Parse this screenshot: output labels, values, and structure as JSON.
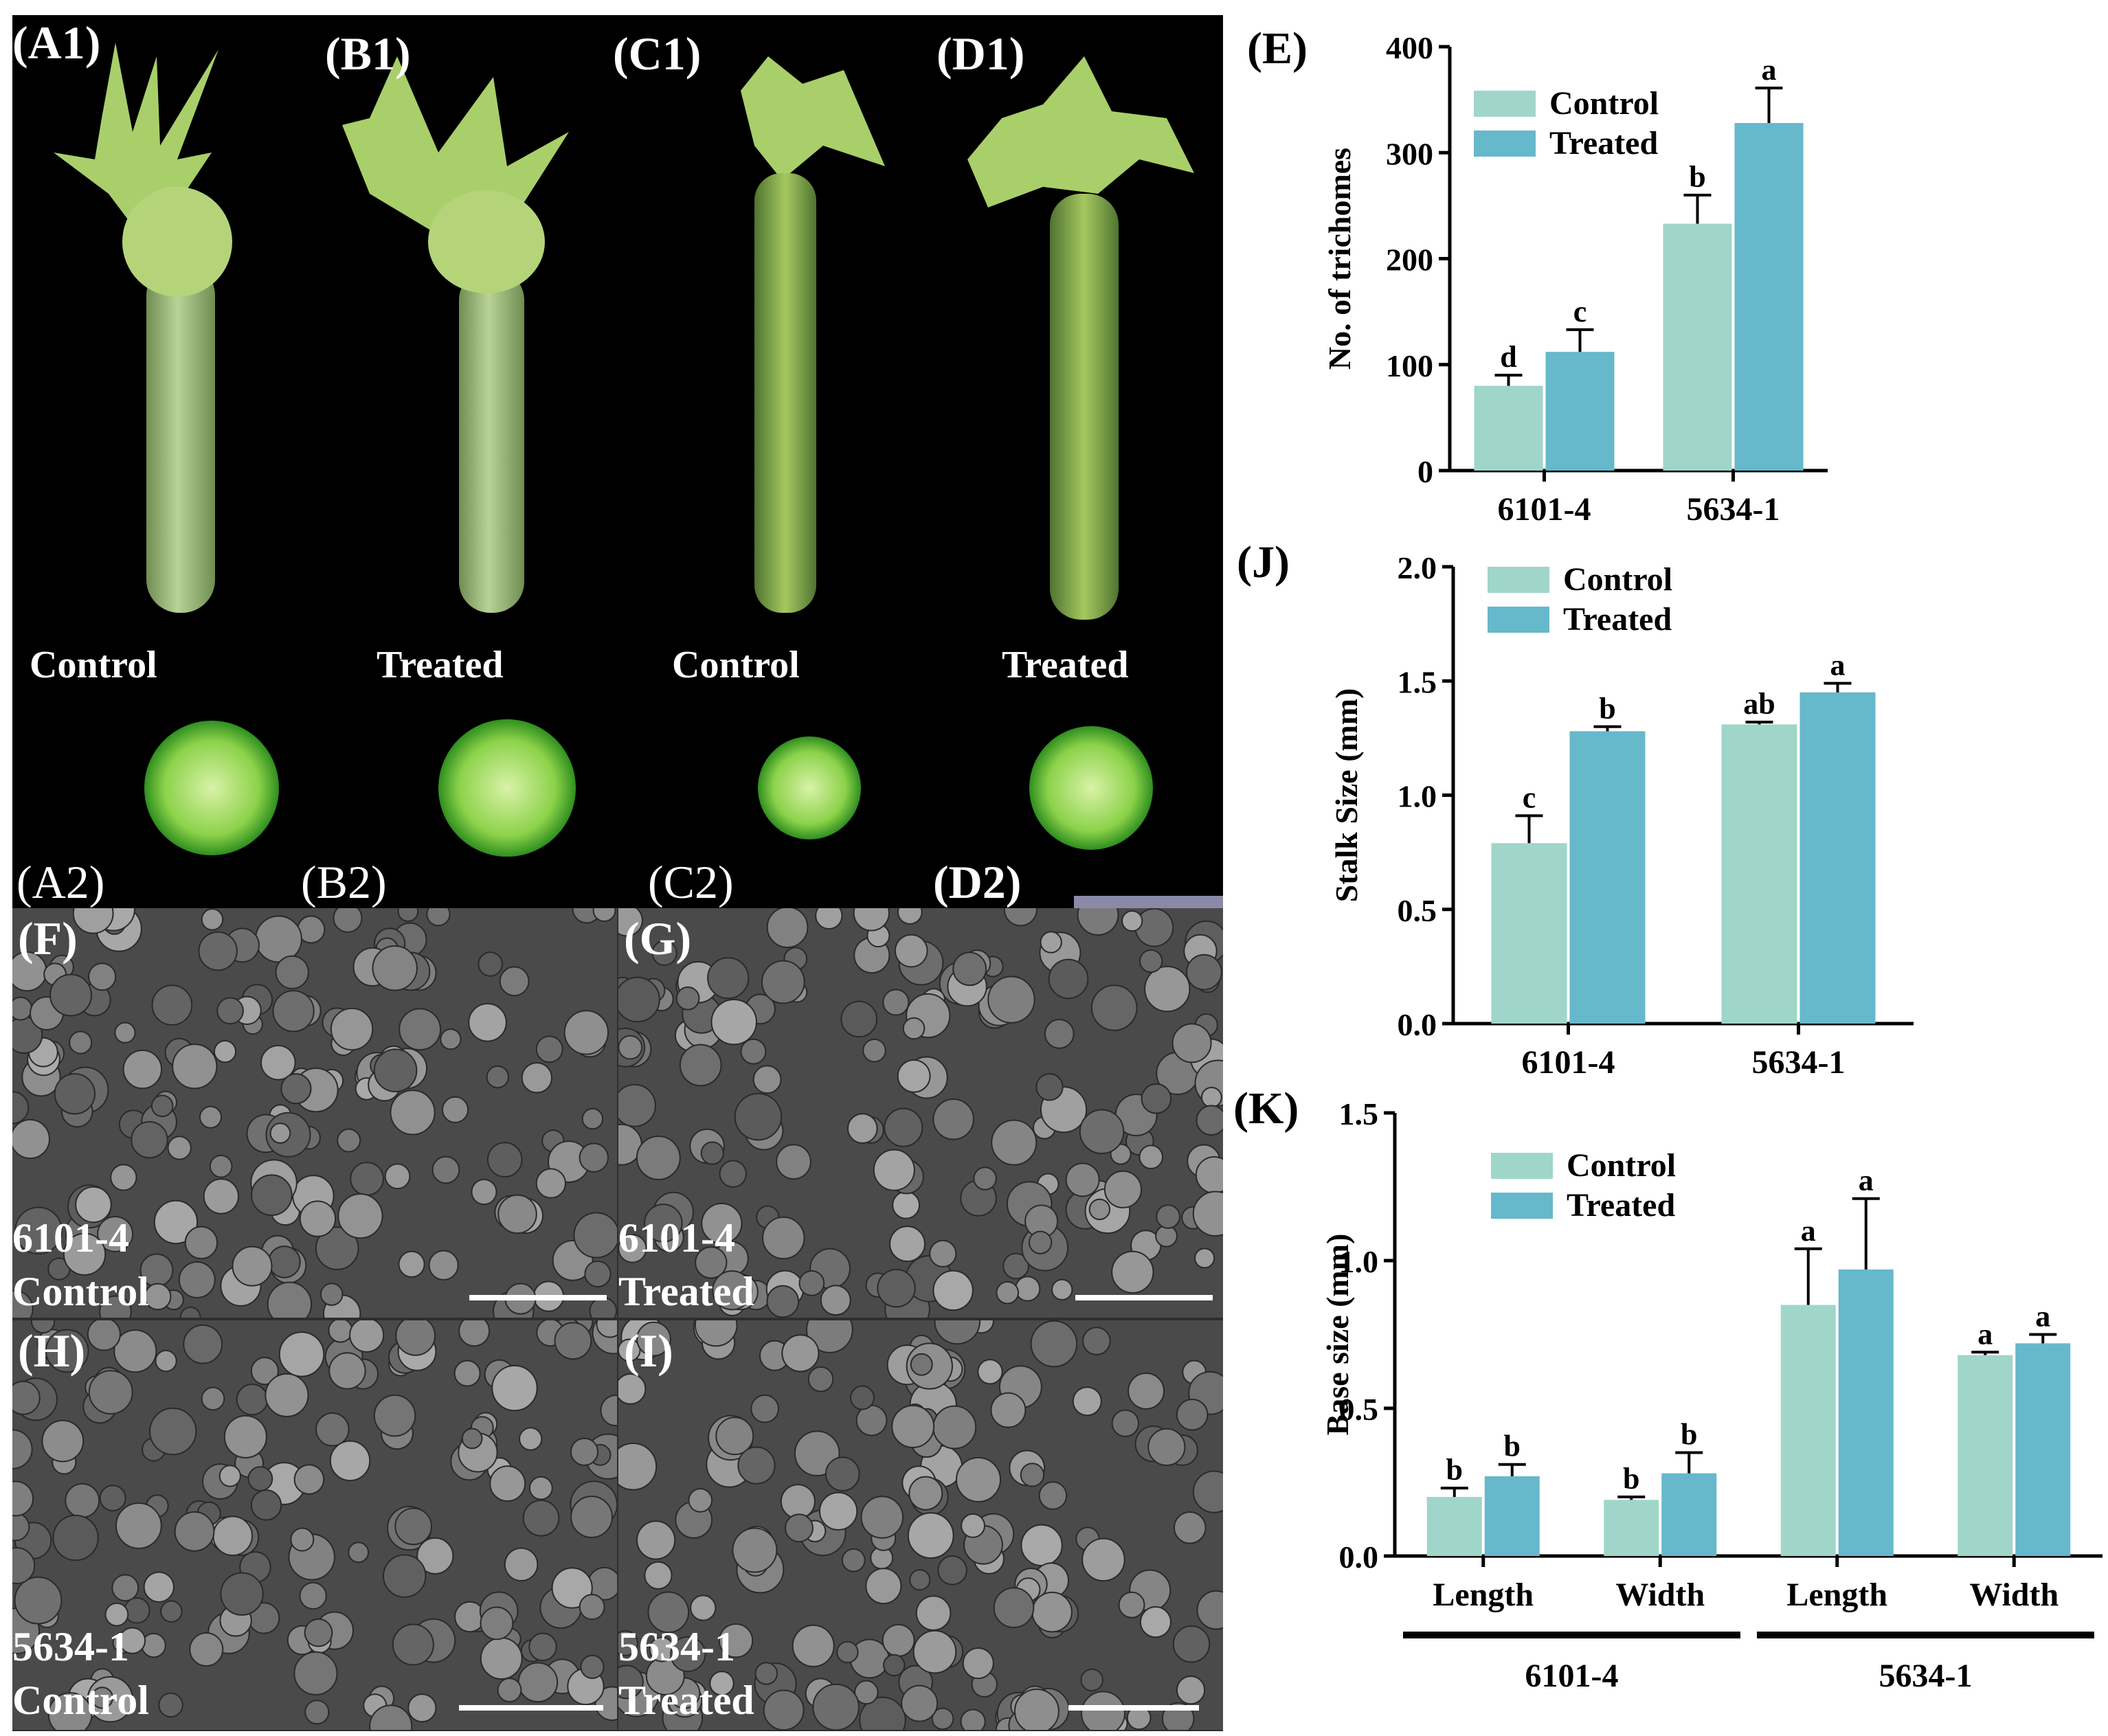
{
  "colors": {
    "control": "#9fd6c9",
    "treated": "#66b8cb",
    "photo_bg": "#000000",
    "fruit": "#9fc46e",
    "sem_bg": "#3a3a3a"
  },
  "photos": {
    "top_labels": [
      "(A1)",
      "(B1)",
      "(C1)",
      "(D1)"
    ],
    "bottom_labels": [
      "(A2)",
      "(B2)",
      "(C2)",
      "(D2)"
    ],
    "condition_labels": [
      "Control",
      "Treated",
      "Control",
      "Treated"
    ]
  },
  "sem": {
    "cells": [
      {
        "label": "(F)",
        "line": "6101-4",
        "condition": "Control"
      },
      {
        "label": "(G)",
        "line": "6101-4",
        "condition": "Treated"
      },
      {
        "label": "(H)",
        "line": "5634-1",
        "condition": "Control"
      },
      {
        "label": "(I)",
        "line": "5634-1",
        "condition": "Treated"
      }
    ]
  },
  "chart_data": [
    {
      "panel": "(E)",
      "type": "bar",
      "ylabel": "No. of trichomes",
      "xlabel": "",
      "categories": [
        "6101-4",
        "5634-1"
      ],
      "ylim": [
        0,
        400
      ],
      "yticks": [
        "0",
        "100",
        "200",
        "300",
        "400"
      ],
      "legend": "top-left",
      "series": [
        {
          "name": "Control",
          "values": [
            80,
            233
          ],
          "errors": [
            10,
            27
          ],
          "letters": [
            "d",
            "b"
          ]
        },
        {
          "name": "Treated",
          "values": [
            112,
            328
          ],
          "errors": [
            21,
            33
          ],
          "letters": [
            "c",
            "a"
          ]
        }
      ]
    },
    {
      "panel": "(J)",
      "type": "bar",
      "ylabel": "Stalk Size (mm)",
      "xlabel": "",
      "categories": [
        "6101-4",
        "5634-1"
      ],
      "ylim": [
        0,
        2.0
      ],
      "yticks": [
        "0.0",
        "0.5",
        "1.0",
        "1.5",
        "2.0"
      ],
      "legend": "top-left",
      "series": [
        {
          "name": "Control",
          "values": [
            0.79,
            1.31
          ],
          "errors": [
            0.12,
            0.01
          ],
          "letters": [
            "c",
            "ab"
          ]
        },
        {
          "name": "Treated",
          "values": [
            1.28,
            1.45
          ],
          "errors": [
            0.02,
            0.04
          ],
          "letters": [
            "b",
            "a"
          ]
        }
      ]
    },
    {
      "panel": "(K)",
      "type": "bar",
      "ylabel": "Base size (mm)",
      "xlabel": "",
      "categories": [
        "Length",
        "Width",
        "Length",
        "Width"
      ],
      "groups": [
        {
          "label": "6101-4",
          "span": [
            0,
            1
          ]
        },
        {
          "label": "5634-1",
          "span": [
            2,
            3
          ]
        }
      ],
      "ylim": [
        0,
        1.5
      ],
      "yticks": [
        "0.0",
        "0.5",
        "1.0",
        "1.5"
      ],
      "legend": "top-left",
      "series": [
        {
          "name": "Control",
          "values": [
            0.2,
            0.19,
            0.85,
            0.68
          ],
          "errors": [
            0.03,
            0.01,
            0.19,
            0.01
          ],
          "letters": [
            "b",
            "b",
            "a",
            "a"
          ]
        },
        {
          "name": "Treated",
          "values": [
            0.27,
            0.28,
            0.97,
            0.72
          ],
          "errors": [
            0.04,
            0.07,
            0.24,
            0.03
          ],
          "letters": [
            "b",
            "b",
            "a",
            "a"
          ]
        }
      ]
    }
  ]
}
